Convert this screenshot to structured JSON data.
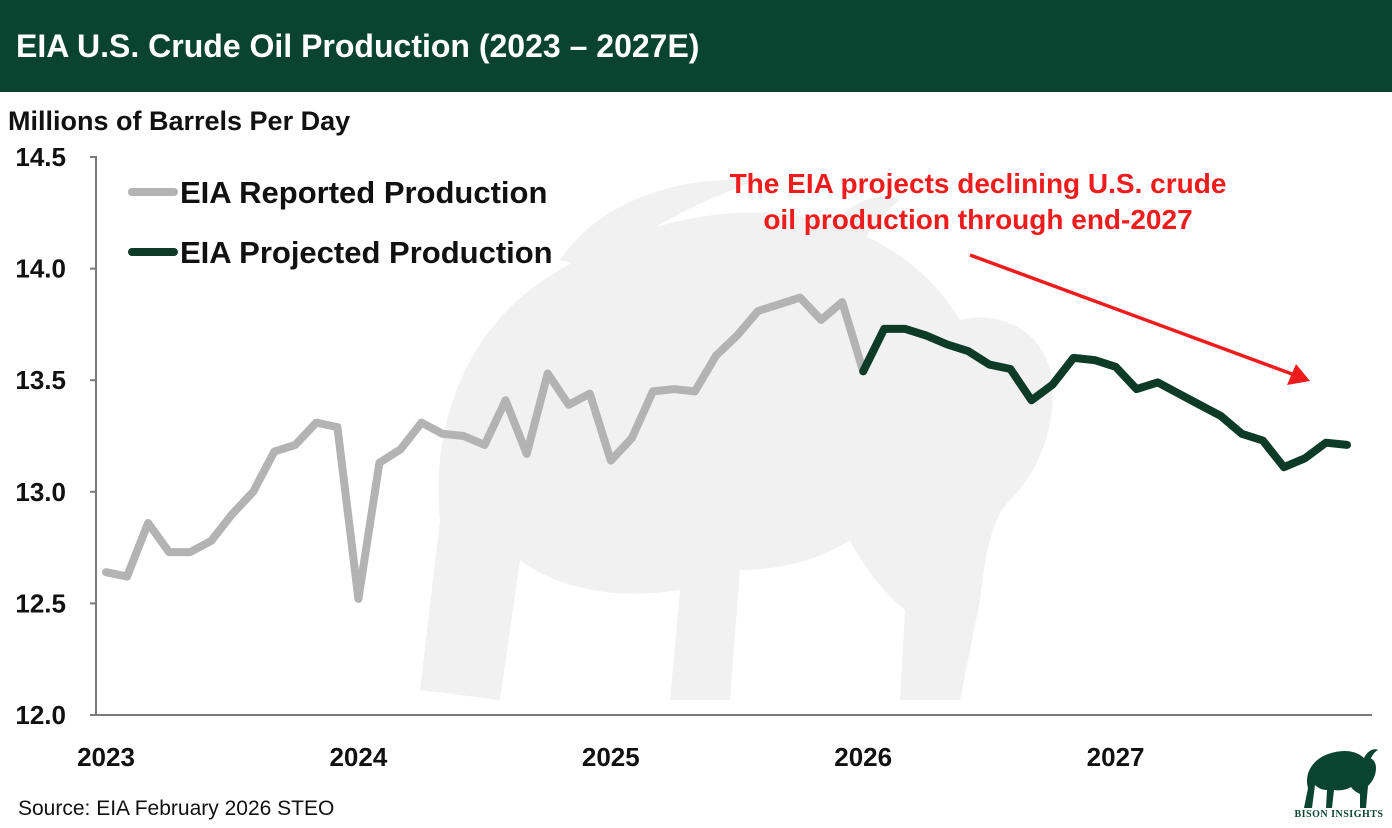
{
  "header": {
    "title": "EIA U.S. Crude Oil Production (2023 – 2027E)"
  },
  "footer": {
    "source": "Source: EIA February 2026 STEO"
  },
  "brand": {
    "logo_text": "BISON INSIGHTS",
    "logo_icon": "bison-icon"
  },
  "colors": {
    "header_bg": "#0a4431",
    "reported": "#b3b3b3",
    "projected": "#0d3b28",
    "annotation": "#ee1c1c"
  },
  "chart_data": {
    "type": "line",
    "title": "EIA U.S. Crude Oil Production (2023 – 2027E)",
    "ylabel": "Millions of Barrels Per Day",
    "xlabel": "",
    "ylim": [
      12.0,
      14.5
    ],
    "yticks": [
      "12.0",
      "12.5",
      "13.0",
      "13.5",
      "14.0",
      "14.5"
    ],
    "xticks": [
      "2023",
      "2024",
      "2025",
      "2026",
      "2027"
    ],
    "xrange_months": [
      0,
      60
    ],
    "grid": false,
    "legend_position": "top-left",
    "series": [
      {
        "name": "EIA Reported Production",
        "start_month": 0,
        "values": [
          12.64,
          12.62,
          12.86,
          12.73,
          12.73,
          12.78,
          12.9,
          13.0,
          13.18,
          13.21,
          13.31,
          13.29,
          12.52,
          13.13,
          13.19,
          13.31,
          13.26,
          13.25,
          13.21,
          13.41,
          13.17,
          13.53,
          13.39,
          13.44,
          13.14,
          13.24,
          13.45,
          13.46,
          13.45,
          13.61,
          13.7,
          13.81,
          13.84,
          13.87,
          13.77,
          13.85,
          13.54
        ]
      },
      {
        "name": "EIA Projected Production",
        "start_month": 36,
        "values": [
          13.54,
          13.73,
          13.73,
          13.7,
          13.66,
          13.63,
          13.57,
          13.55,
          13.41,
          13.48,
          13.6,
          13.59,
          13.56,
          13.46,
          13.49,
          13.44,
          13.39,
          13.34,
          13.26,
          13.23,
          13.11,
          13.15,
          13.22,
          13.21
        ]
      }
    ],
    "annotation": {
      "lines": [
        "The EIA projects declining U.S. crude",
        "oil production through end-2027"
      ]
    }
  }
}
